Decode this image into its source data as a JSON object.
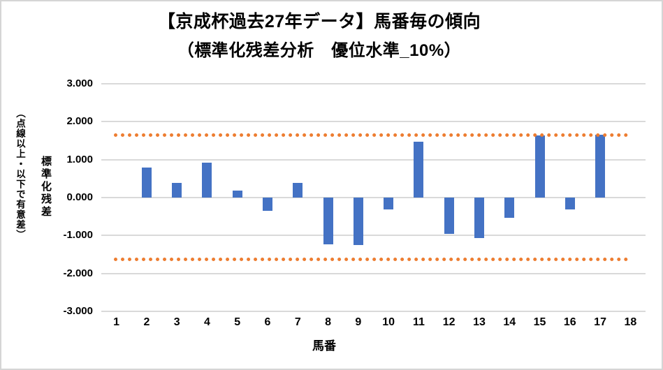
{
  "chart_data": {
    "type": "bar",
    "title_line1": "【京成杯過去27年データ】馬番毎の傾向",
    "title_line2": "（標準化残差分析　優位水準_10%）",
    "xlabel": "馬番",
    "ylabel_main": "標準化残差",
    "ylabel_sub": "（点線以上・以下で有意差）",
    "categories": [
      "1",
      "2",
      "3",
      "4",
      "5",
      "6",
      "7",
      "8",
      "9",
      "10",
      "11",
      "12",
      "13",
      "14",
      "15",
      "16",
      "17",
      "18"
    ],
    "values": [
      0,
      0.79,
      0.39,
      0.92,
      0.18,
      -0.35,
      0.39,
      -1.23,
      -1.25,
      -0.31,
      1.47,
      -0.96,
      -1.06,
      -0.53,
      1.63,
      -0.31,
      1.65,
      0
    ],
    "ylim": [
      -3,
      3
    ],
    "ytick_labels": [
      "3.000",
      "2.000",
      "1.000",
      "0.000",
      "-1.000",
      "-2.000",
      "-3.000"
    ],
    "significance_lines": [
      1.645,
      -1.645
    ],
    "grid": true,
    "legend": "none",
    "colors": {
      "bar": "#4472C4",
      "significance": "#ED7D31",
      "gridline": "#D9D9D9",
      "text": "#000000",
      "canvas_border": "#D5D5D5"
    }
  }
}
